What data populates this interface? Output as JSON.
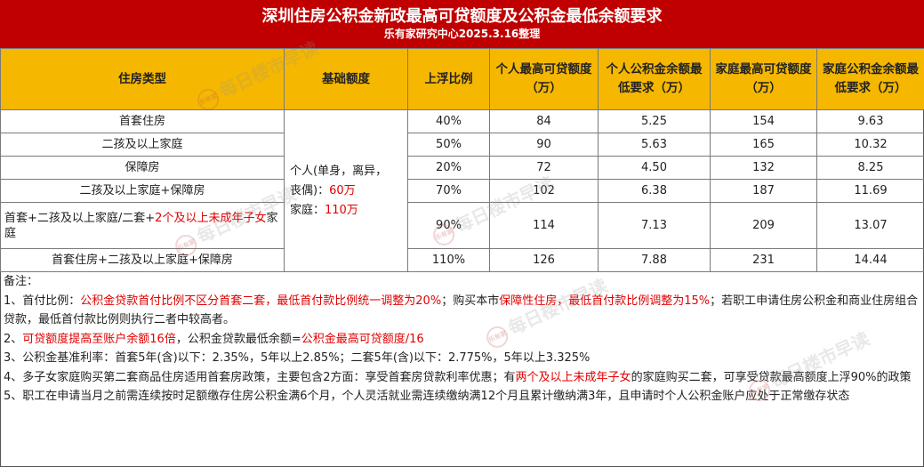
{
  "header": {
    "title": "深圳住房公积金新政最高可贷额度及公积金最低余额要求",
    "subtitle": "乐有家研究中心2025.3.16整理"
  },
  "table": {
    "headers": [
      "住房类型",
      "基础额度",
      "上浮比例",
      "个人最高可贷额度（万）",
      "个人公积金余额最低要求（万）",
      "家庭最高可贷额度（万）",
      "家庭公积金余额最低要求（万）"
    ],
    "base_quota": {
      "line1": "个人(单身，离异，",
      "line2_prefix": "丧偶)：",
      "personal_amount": "60万",
      "family_prefix": "家庭：",
      "family_amount": "110万"
    },
    "rows": [
      {
        "type": "首套住房",
        "ratio": "40%",
        "personal_max": "84",
        "personal_min_balance": "5.25",
        "family_max": "154",
        "family_min_balance": "9.63"
      },
      {
        "type": "二孩及以上家庭",
        "ratio": "50%",
        "personal_max": "90",
        "personal_min_balance": "5.63",
        "family_max": "165",
        "family_min_balance": "10.32"
      },
      {
        "type": "保障房",
        "ratio": "20%",
        "personal_max": "72",
        "personal_min_balance": "4.50",
        "family_max": "132",
        "family_min_balance": "8.25"
      },
      {
        "type": "二孩及以上家庭+保障房",
        "ratio": "70%",
        "personal_max": "102",
        "personal_min_balance": "6.38",
        "family_max": "187",
        "family_min_balance": "11.69"
      },
      {
        "type_prefix": "首套+二孩及以上家庭/二套+",
        "type_red": "2个及以上未成年子女",
        "type_suffix": "家庭",
        "ratio": "90%",
        "personal_max": "114",
        "personal_min_balance": "7.13",
        "family_max": "209",
        "family_min_balance": "13.07"
      },
      {
        "type": "首套住房+二孩及以上家庭+保障房",
        "ratio": "110%",
        "personal_max": "126",
        "personal_min_balance": "7.88",
        "family_max": "231",
        "family_min_balance": "14.44"
      }
    ]
  },
  "notes": {
    "heading": "备注：",
    "n1_a": "1、首付比例：",
    "n1_red1": "公积金贷款首付比例不区分首套二套，最低首付款比例统一调整为20%",
    "n1_b": "；购买本市",
    "n1_red2": "保障性住房，最低首付款比例调整为15%",
    "n1_c": "；若职工申请住房公积金和商业住房组合贷款，最低首付款比例则执行二者中较高者。",
    "n2_a": "2、",
    "n2_red1": "可贷额度提高至账户余额16倍",
    "n2_b": "，公积金贷款最低余额=",
    "n2_red2": "公积金最高可贷额度/16",
    "n3": "3、公积金基准利率：首套5年(含)以下：2.35%，5年以上2.85%；二套5年(含)以下：2.775%，5年以上3.325%",
    "n4_a": "4、多子女家庭购买第二套商品住房适用首套房政策，主要包含2方面：享受首套房贷款利率优惠；有",
    "n4_red": "两个及以上未成年子女",
    "n4_b": "的家庭购买二套，可享受贷款最高额度上浮90%的政策",
    "n5": "5、职工在申请当月之前需连续按时足额缴存住房公积金满6个月，个人灵活就业需连续缴纳满12个月且累计缴纳满3年，且申请时个人公积金账户应处于正常缴存状态"
  },
  "watermark": {
    "text": "每日楼市早读",
    "logo": "乐有家"
  },
  "colors": {
    "title_band": "#c00000",
    "header_fill": "#f5b700",
    "highlight_red": "#e00000"
  }
}
